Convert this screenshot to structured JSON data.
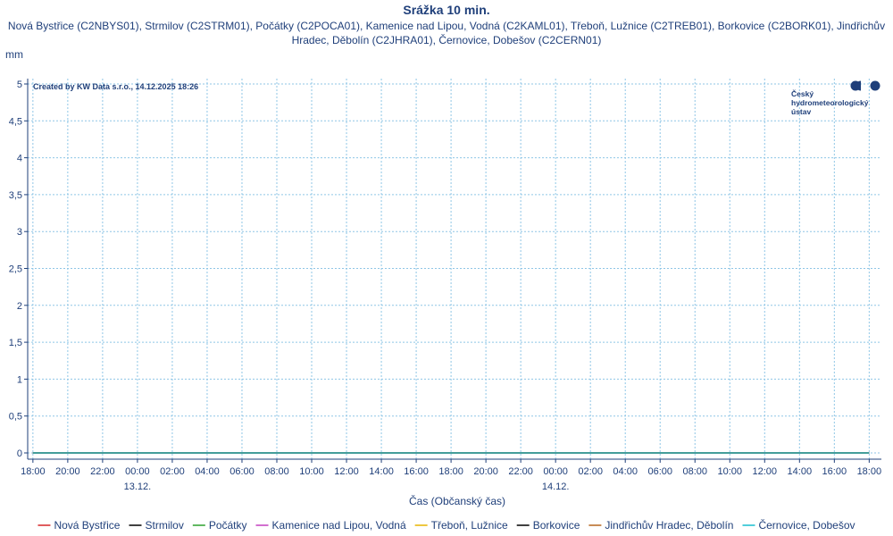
{
  "chart_data": {
    "type": "line",
    "title": "Srážka 10 min.",
    "subtitle_lines": [
      "Nová Bystřice (C2NBYS01), Strmilov (C2STRM01), Počátky (C2POCA01), Kamenice nad Lipou, Vodná (C2KAML01), Třeboň, Lužnice (C2TREB01), Borkovice (C2BORK01), Jindřichův",
      "Hradec, Děbolín (C2JHRA01), Černovice, Dobešov (C2CERN01)"
    ],
    "ylabel": "mm",
    "xlabel": "Čas (Občanský čas)",
    "credit": "Created by KW Data s.r.o., 14.12.2025 18:26",
    "logo_lines": [
      "Český",
      "hydrometeorologický",
      "ústav"
    ],
    "ylim": [
      0,
      5
    ],
    "yticks": [
      0,
      0.5,
      1,
      1.5,
      2,
      2.5,
      3,
      3.5,
      4,
      4.5,
      5
    ],
    "ytick_labels": [
      "0",
      "0,5",
      "1",
      "1,5",
      "2",
      "2,5",
      "3",
      "3,5",
      "4",
      "4,5",
      "5"
    ],
    "xlim": [
      -0.3,
      48.7
    ],
    "xticks": [
      0,
      2,
      4,
      6,
      8,
      10,
      12,
      14,
      16,
      18,
      20,
      22,
      24,
      26,
      28,
      30,
      32,
      34,
      36,
      38,
      40,
      42,
      44,
      46,
      48
    ],
    "xtick_labels": [
      "18:00",
      "20:00",
      "22:00",
      "00:00",
      "02:00",
      "04:00",
      "06:00",
      "08:00",
      "10:00",
      "12:00",
      "14:00",
      "16:00",
      "18:00",
      "20:00",
      "22:00",
      "00:00",
      "02:00",
      "04:00",
      "06:00",
      "08:00",
      "10:00",
      "12:00",
      "14:00",
      "16:00",
      "18:00"
    ],
    "date_labels": [
      {
        "x": 6,
        "label": "13.12."
      },
      {
        "x": 30,
        "label": "14.12."
      }
    ],
    "grid": true,
    "legend_position": "bottom",
    "series": [
      {
        "name": "Nová Bystřice",
        "color": "#d62728",
        "x": [
          0,
          48
        ],
        "y": [
          0,
          0
        ]
      },
      {
        "name": "Strmilov",
        "color": "#000000",
        "x": [
          0,
          48
        ],
        "y": [
          0,
          0
        ]
      },
      {
        "name": "Počátky",
        "color": "#2ca02c",
        "x": [
          0,
          48
        ],
        "y": [
          0,
          0
        ]
      },
      {
        "name": "Kamenice nad Lipou, Vodná",
        "color": "#c23fbf",
        "x": [
          0,
          48
        ],
        "y": [
          0,
          0
        ]
      },
      {
        "name": "Třeboň, Lužnice",
        "color": "#e8b400",
        "x": [
          0,
          48
        ],
        "y": [
          0,
          0
        ]
      },
      {
        "name": "Borkovice",
        "color": "#000000",
        "x": [
          0,
          48
        ],
        "y": [
          0,
          0
        ]
      },
      {
        "name": "Jindřichův Hradec, Děbolín",
        "color": "#b5651d",
        "x": [
          0,
          48
        ],
        "y": [
          0,
          0
        ]
      },
      {
        "name": "Černovice, Dobešov",
        "color": "#17becf",
        "x": [
          0,
          48
        ],
        "y": [
          0,
          0
        ]
      }
    ]
  }
}
